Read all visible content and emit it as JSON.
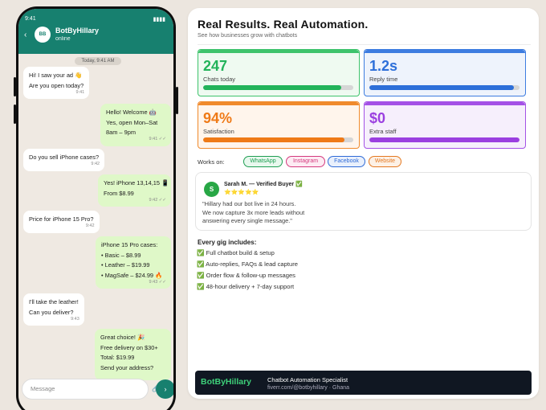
{
  "phone": {
    "time": "9:41",
    "signal": "▮▮▮▮",
    "contact_initials": "BB",
    "contact_name": "BotByHillary",
    "contact_status": "online",
    "date_pill": "Today, 9:41 AM",
    "input_placeholder": "Message",
    "send_icon": "›"
  },
  "messages": [
    {
      "dir": "in",
      "lines": [
        "Hi! I saw your ad 👋",
        "Are you open today?"
      ],
      "time": "9:41"
    },
    {
      "dir": "out",
      "lines": [
        "Hello! Welcome 🤖",
        "Yes, open Mon–Sat",
        "8am – 9pm"
      ],
      "time": "9:41 ✓✓"
    },
    {
      "dir": "in",
      "lines": [
        "Do you sell iPhone cases?"
      ],
      "time": "9:42"
    },
    {
      "dir": "out",
      "lines": [
        "Yes! iPhone 13,14,15 📱",
        "From $8.99"
      ],
      "time": "9:42 ✓✓"
    },
    {
      "dir": "in",
      "lines": [
        "Price for iPhone 15 Pro?"
      ],
      "time": "9:42"
    },
    {
      "dir": "out",
      "lines": [
        "iPhone 15 Pro cases:",
        "• Basic – $8.99",
        "• Leather – $19.99",
        "• MagSafe – $24.99 🔥"
      ],
      "time": "9:43 ✓✓"
    },
    {
      "dir": "in",
      "lines": [
        "I'll take the leather!",
        "Can you deliver?"
      ],
      "time": "9:43"
    },
    {
      "dir": "out",
      "lines": [
        "Great choice! 🎉",
        "Free delivery on $30+",
        "Total: $19.99",
        "Send your address?"
      ],
      "time": ""
    }
  ],
  "panel": {
    "title": "Real Results. Real Automation.",
    "subtitle": "See how businesses grow with chatbots"
  },
  "stats": [
    {
      "value": "247",
      "label": "Chats today",
      "color": "#22b35a",
      "bg": "#effaf1",
      "border": "#3ec36c",
      "progress": 0.92
    },
    {
      "value": "1.2s",
      "label": "Reply time",
      "color": "#2d6fd9",
      "bg": "#eef3fc",
      "border": "#3d7ce0",
      "progress": 0.96
    },
    {
      "value": "94%",
      "label": "Satisfaction",
      "color": "#ef7a17",
      "bg": "#fff5ec",
      "border": "#f08a2c",
      "progress": 0.94
    },
    {
      "value": "$0",
      "label": "Extra staff",
      "color": "#9b3fe0",
      "bg": "#f6effc",
      "border": "#a451e6",
      "progress": 1.0
    }
  ],
  "works_on": {
    "label": "Works on:",
    "platforms": [
      {
        "name": "WhatsApp",
        "color": "#1e9e52",
        "bg": "#e8f8ee"
      },
      {
        "name": "Instagram",
        "color": "#d43a7e",
        "bg": "#fdebf3"
      },
      {
        "name": "Facebook",
        "color": "#2f6ad6",
        "bg": "#e9f0fc"
      },
      {
        "name": "Website",
        "color": "#e47820",
        "bg": "#fdf1e6"
      }
    ]
  },
  "review": {
    "initial": "S",
    "name": "Sarah M. — Verified Buyer ✅",
    "stars": "⭐⭐⭐⭐⭐",
    "text": [
      "\"Hillary had our bot live in 24 hours.",
      "We now capture 3x more leads without",
      "answering every single message.\""
    ]
  },
  "gig": {
    "title": "Every gig includes:",
    "items": [
      "✅ Full chatbot build & setup",
      "✅ Auto-replies, FAQs & lead capture",
      "✅ Order flow & follow-up messages",
      "✅ 48-hour delivery + 7-day support"
    ]
  },
  "footer": {
    "brand": "BotByHillary",
    "title": "Chatbot Automation Specialist",
    "link": "fiverr.com/@botbyhillary · Ghana"
  }
}
